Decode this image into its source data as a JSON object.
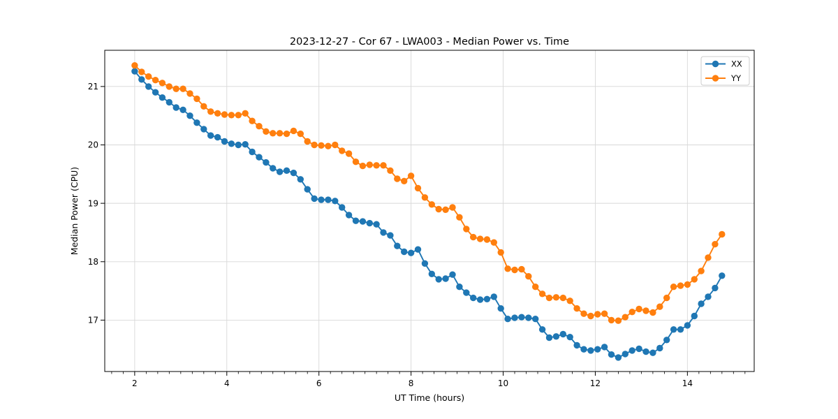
{
  "chart_data": {
    "type": "line",
    "title": "2023-12-27 - Cor 67 - LWA003 - Median Power vs. Time",
    "xlabel": "UT Time (hours)",
    "ylabel": "Median Power (CPU)",
    "xlim": [
      1.35,
      15.45
    ],
    "ylim": [
      16.12,
      21.62
    ],
    "x_ticks": [
      2,
      4,
      6,
      8,
      10,
      12,
      14
    ],
    "y_ticks": [
      17,
      18,
      19,
      20,
      21
    ],
    "minor_tick_step": 0.25,
    "grid": true,
    "legend_position": "upper right",
    "colors": {
      "XX": "#1f77b4",
      "YY": "#ff7f0e",
      "grid": "#d8d8d8",
      "spine": "#000000"
    },
    "x": [
      2,
      2.15,
      2.3,
      2.45,
      2.6,
      2.75,
      2.9,
      3.05,
      3.2,
      3.35,
      3.5,
      3.65,
      3.8,
      3.95,
      4.1,
      4.25,
      4.4,
      4.55,
      4.7,
      4.85,
      5,
      5.15,
      5.3,
      5.45,
      5.6,
      5.75,
      5.9,
      6.05,
      6.2,
      6.35,
      6.5,
      6.65,
      6.8,
      6.95,
      7.1,
      7.25,
      7.4,
      7.55,
      7.7,
      7.85,
      8,
      8.15,
      8.3,
      8.45,
      8.6,
      8.75,
      8.9,
      9.05,
      9.2,
      9.35,
      9.5,
      9.65,
      9.8,
      9.95,
      10.1,
      10.25,
      10.4,
      10.55,
      10.7,
      10.85,
      11,
      11.15,
      11.3,
      11.45,
      11.6,
      11.75,
      11.9,
      12.05,
      12.2,
      12.35,
      12.5,
      12.65,
      12.8,
      12.95,
      13.1,
      13.25,
      13.4,
      13.55,
      13.7,
      13.85,
      14,
      14.15,
      14.3,
      14.45,
      14.6,
      14.75
    ],
    "series": [
      {
        "name": "XX",
        "color": "#1f77b4",
        "values": [
          21.26,
          21.12,
          21.0,
          20.9,
          20.81,
          20.73,
          20.64,
          20.6,
          20.5,
          20.38,
          20.27,
          20.16,
          20.13,
          20.06,
          20.02,
          20.0,
          20.01,
          19.88,
          19.79,
          19.7,
          19.6,
          19.54,
          19.56,
          19.52,
          19.41,
          19.24,
          19.08,
          19.06,
          19.06,
          19.04,
          18.93,
          18.8,
          18.7,
          18.69,
          18.66,
          18.64,
          18.5,
          18.45,
          18.27,
          18.17,
          18.15,
          18.21,
          17.97,
          17.79,
          17.7,
          17.71,
          17.78,
          17.57,
          17.47,
          17.38,
          17.35,
          17.36,
          17.4,
          17.2,
          17.02,
          17.04,
          17.05,
          17.04,
          17.02,
          16.84,
          16.7,
          16.72,
          16.76,
          16.71,
          16.57,
          16.5,
          16.48,
          16.5,
          16.54,
          16.41,
          16.36,
          16.42,
          16.48,
          16.51,
          16.46,
          16.44,
          16.52,
          16.66,
          16.84,
          16.84,
          16.91,
          17.07,
          17.28,
          17.4,
          17.55,
          17.76
        ]
      },
      {
        "name": "YY",
        "color": "#ff7f0e",
        "values": [
          21.36,
          21.25,
          21.17,
          21.11,
          21.06,
          21.0,
          20.96,
          20.96,
          20.88,
          20.79,
          20.66,
          20.57,
          20.54,
          20.52,
          20.51,
          20.51,
          20.54,
          20.41,
          20.32,
          20.23,
          20.2,
          20.2,
          20.19,
          20.24,
          20.19,
          20.06,
          20.0,
          19.99,
          19.98,
          20.0,
          19.9,
          19.85,
          19.71,
          19.64,
          19.66,
          19.65,
          19.65,
          19.56,
          19.42,
          19.38,
          19.47,
          19.26,
          19.1,
          18.98,
          18.9,
          18.89,
          18.93,
          18.76,
          18.56,
          18.42,
          18.39,
          18.38,
          18.33,
          18.16,
          17.88,
          17.86,
          17.87,
          17.75,
          17.57,
          17.45,
          17.38,
          17.39,
          17.38,
          17.33,
          17.2,
          17.11,
          17.07,
          17.1,
          17.11,
          17.0,
          16.99,
          17.05,
          17.14,
          17.19,
          17.16,
          17.13,
          17.23,
          17.38,
          17.57,
          17.59,
          17.61,
          17.7,
          17.84,
          18.07,
          18.3,
          18.47
        ]
      }
    ]
  }
}
